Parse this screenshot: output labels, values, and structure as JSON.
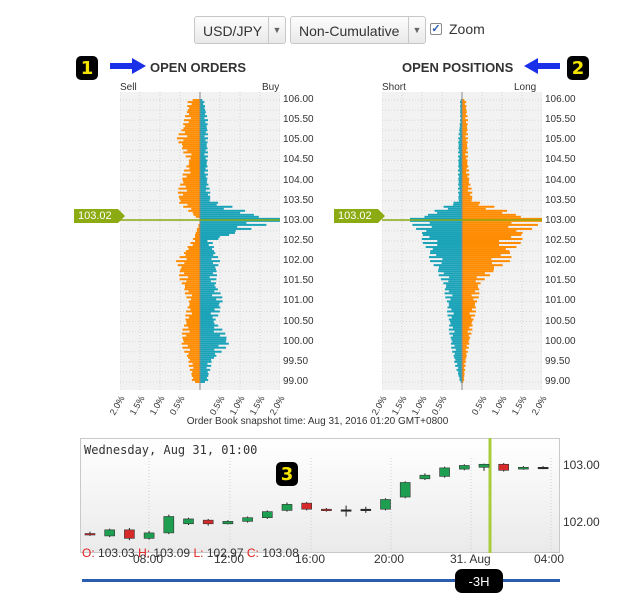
{
  "controls": {
    "pair": "USD/JPY",
    "mode": "Non-Cumulative",
    "zoom_label": "Zoom",
    "zoom_checked": "✓"
  },
  "badges": {
    "b1": "1",
    "b2": "2",
    "b3": "3"
  },
  "orders": {
    "title": "OPEN ORDERS",
    "left_label": "Sell",
    "right_label": "Buy",
    "current_price": "103.02"
  },
  "positions": {
    "title": "OPEN POSITIONS",
    "left_label": "Short",
    "right_label": "Long",
    "current_price": "103.02"
  },
  "y_ticks": [
    "106.00",
    "105.50",
    "105.00",
    "104.50",
    "104.00",
    "103.50",
    "103.00",
    "102.50",
    "102.00",
    "101.50",
    "101.00",
    "100.50",
    "100.00",
    "99.50",
    "99.00"
  ],
  "x_ticks": [
    "2.0%",
    "1.5%",
    "1.0%",
    "0.5%",
    "0.5%",
    "1.0%",
    "1.5%",
    "2.0%"
  ],
  "snapshot": "Order Book snapshot time: Aug 31, 2016 01:20 GMT+0800",
  "candles": {
    "date_label": "Wednesday, Aug 31, 01:00",
    "ohlc": {
      "o_k": "O:",
      "o_v": "103.03",
      "h_k": "H:",
      "h_v": "103.09",
      "l_k": "L:",
      "l_v": "102.97",
      "c_k": "C:",
      "c_v": "103.08"
    },
    "time_labels": [
      "08:00",
      "12:00",
      "16:00",
      "20:00",
      "31. Aug",
      "04:00"
    ],
    "price_labels": [
      "103.00",
      "102.00"
    ],
    "range_label": "-3H"
  },
  "colors": {
    "sell": "#ff8c00",
    "buy": "#1aa3b8",
    "price": "#8caa12",
    "up": "#1e9e50",
    "down": "#d62a2a",
    "slider": "#2a5db0"
  },
  "chart_data": [
    {
      "type": "bar",
      "title": "OPEN ORDERS",
      "orientation": "horizontal",
      "levels": [
        106.0,
        105.5,
        105.0,
        104.5,
        104.0,
        103.5,
        103.0,
        102.5,
        102.0,
        101.5,
        101.0,
        100.5,
        100.0,
        99.5,
        99.0
      ],
      "series": [
        {
          "name": "Sell",
          "values": [
            0.3,
            0.4,
            0.6,
            0.3,
            0.5,
            0.6,
            0.0,
            0.2,
            0.6,
            0.5,
            0.3,
            0.4,
            0.5,
            0.3,
            0.2
          ]
        },
        {
          "name": "Buy",
          "values": [
            0.1,
            0.2,
            0.2,
            0.2,
            0.2,
            0.3,
            2.0,
            0.3,
            0.5,
            0.4,
            0.6,
            0.4,
            0.8,
            0.3,
            0.2
          ]
        }
      ],
      "xlim": [
        -2.0,
        2.0
      ],
      "ylim": [
        98.8,
        106.2
      ],
      "current": 103.02
    },
    {
      "type": "bar",
      "title": "OPEN POSITIONS",
      "orientation": "horizontal",
      "levels": [
        106.0,
        105.5,
        105.0,
        104.5,
        104.0,
        103.5,
        103.0,
        102.5,
        102.0,
        101.5,
        101.0,
        100.5,
        100.0,
        99.5,
        99.0
      ],
      "series": [
        {
          "name": "Short",
          "values": [
            0.05,
            0.05,
            0.1,
            0.1,
            0.1,
            0.1,
            1.3,
            1.0,
            0.8,
            0.5,
            0.4,
            0.35,
            0.3,
            0.2,
            0.05
          ]
        },
        {
          "name": "Long",
          "values": [
            0.1,
            0.15,
            0.15,
            0.15,
            0.2,
            0.3,
            2.0,
            1.5,
            1.2,
            0.5,
            0.4,
            0.3,
            0.2,
            0.1,
            0.05
          ]
        }
      ],
      "xlim": [
        -2.0,
        2.0
      ],
      "ylim": [
        98.8,
        106.2
      ],
      "current": 103.02
    },
    {
      "type": "candlestick",
      "ylim": [
        101.8,
        103.15
      ],
      "candles": [
        {
          "o": 101.94,
          "c": 101.92,
          "h": 101.97,
          "l": 101.9
        },
        {
          "o": 101.9,
          "c": 102.0,
          "h": 102.02,
          "l": 101.88
        },
        {
          "o": 102.0,
          "c": 101.86,
          "h": 102.03,
          "l": 101.83
        },
        {
          "o": 101.86,
          "c": 101.95,
          "h": 101.98,
          "l": 101.84
        },
        {
          "o": 101.95,
          "c": 102.22,
          "h": 102.25,
          "l": 101.93
        },
        {
          "o": 102.1,
          "c": 102.18,
          "h": 102.2,
          "l": 102.08
        },
        {
          "o": 102.16,
          "c": 102.1,
          "h": 102.18,
          "l": 102.07
        },
        {
          "o": 102.1,
          "c": 102.14,
          "h": 102.16,
          "l": 102.09
        },
        {
          "o": 102.14,
          "c": 102.2,
          "h": 102.22,
          "l": 102.12
        },
        {
          "o": 102.2,
          "c": 102.3,
          "h": 102.32,
          "l": 102.18
        },
        {
          "o": 102.32,
          "c": 102.42,
          "h": 102.45,
          "l": 102.3
        },
        {
          "o": 102.44,
          "c": 102.34,
          "h": 102.46,
          "l": 102.32
        },
        {
          "o": 102.34,
          "c": 102.32,
          "h": 102.36,
          "l": 102.3
        },
        {
          "o": 102.32,
          "c": 102.33,
          "h": 102.4,
          "l": 102.22
        },
        {
          "o": 102.33,
          "c": 102.34,
          "h": 102.38,
          "l": 102.28
        },
        {
          "o": 102.34,
          "c": 102.5,
          "h": 102.52,
          "l": 102.32
        },
        {
          "o": 102.54,
          "c": 102.78,
          "h": 102.8,
          "l": 102.52
        },
        {
          "o": 102.84,
          "c": 102.9,
          "h": 102.93,
          "l": 102.82
        },
        {
          "o": 102.88,
          "c": 103.02,
          "h": 103.04,
          "l": 102.86
        },
        {
          "o": 103.0,
          "c": 103.06,
          "h": 103.08,
          "l": 102.98
        },
        {
          "o": 103.03,
          "c": 103.08,
          "h": 103.09,
          "l": 102.97
        },
        {
          "o": 103.08,
          "c": 102.98,
          "h": 103.1,
          "l": 102.96
        },
        {
          "o": 103.0,
          "c": 103.03,
          "h": 103.05,
          "l": 102.99
        },
        {
          "o": 103.02,
          "c": 103.03,
          "h": 103.05,
          "l": 103.0
        }
      ]
    }
  ]
}
